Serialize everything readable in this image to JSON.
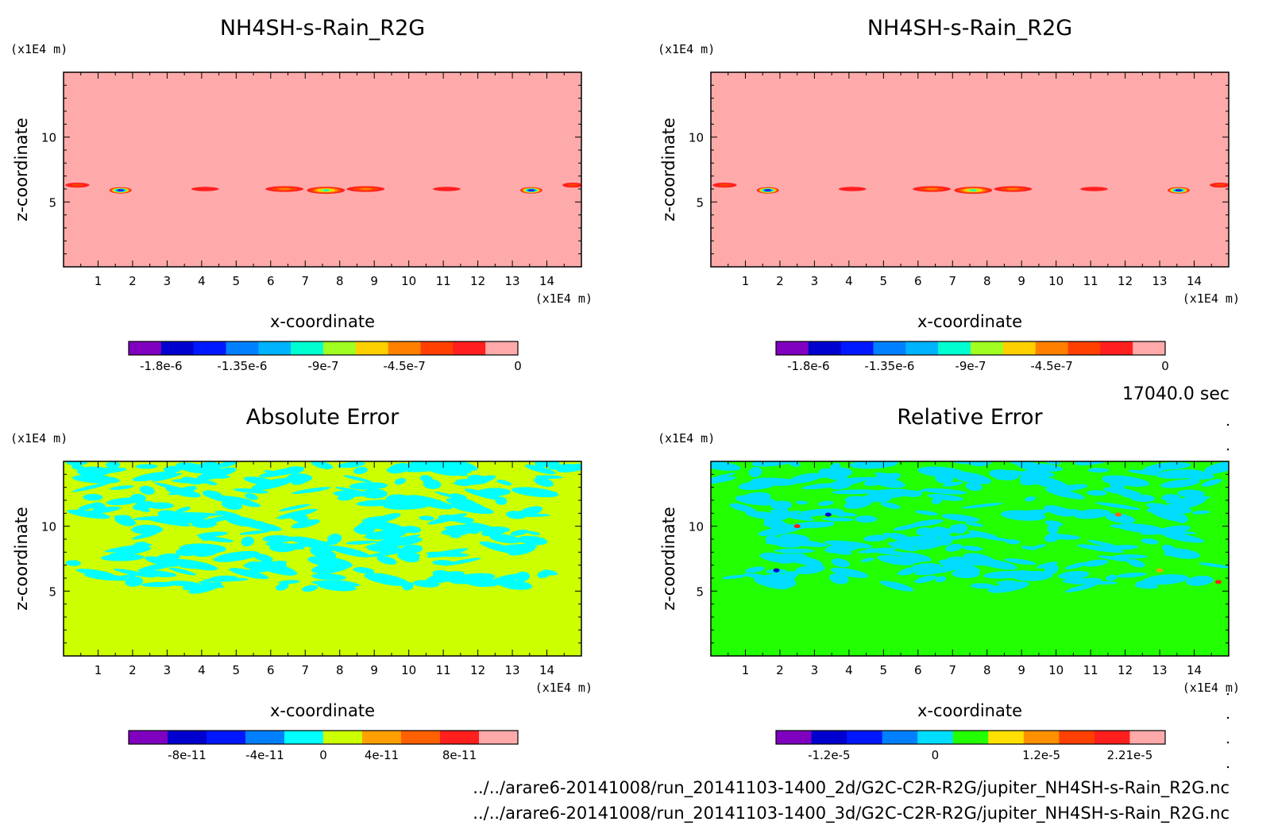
{
  "footer": {
    "time_label": "17040.0 sec",
    "file1": "../../arare6-20141008/run_20141103-1400_2d/G2C-C2R-R2G/jupiter_NH4SH-s-Rain_R2G.nc",
    "file2": "../../arare6-20141008/run_20141103-1400_3d/G2C-C2R-R2G/jupiter_NH4SH-s-Rain_R2G.nc"
  },
  "chart_data": [
    {
      "type": "heatmap",
      "title": "NH4SH-s-Rain_R2G",
      "xlabel": "x-coordinate",
      "ylabel": "z-coordinate",
      "x_unit": "(x1E4 m)",
      "y_unit": "(x1E4 m)",
      "xlim": [
        0,
        15
      ],
      "ylim": [
        0,
        15
      ],
      "x_ticks": [
        "1",
        "2",
        "3",
        "4",
        "5",
        "6",
        "7",
        "8",
        "9",
        "10",
        "11",
        "12",
        "13",
        "14"
      ],
      "y_ticks": [
        "5",
        "10"
      ],
      "background_color": "#ffaaaa",
      "colorbar": {
        "colors": [
          "#7f00bf",
          "#0000cf",
          "#0018ff",
          "#0080ff",
          "#00b3ff",
          "#00ffd0",
          "#a0ff20",
          "#ffd000",
          "#ff8000",
          "#ff4000",
          "#ff1f1f",
          "#ffaaaa"
        ],
        "tick_labels": [
          "-1.8e-6",
          "-1.35e-6",
          "-9e-7",
          "-4.5e-7",
          "0"
        ]
      },
      "features": [
        {
          "x": 0.4,
          "z": 6.3,
          "rx": 0.35,
          "rz": 0.35,
          "min": -3.5e-07
        },
        {
          "x": 1.65,
          "z": 5.9,
          "rx": 0.32,
          "rz": 0.45,
          "min": -1.7e-06
        },
        {
          "x": 4.1,
          "z": 6.0,
          "rx": 0.4,
          "rz": 0.3,
          "min": -2e-07
        },
        {
          "x": 6.4,
          "z": 6.0,
          "rx": 0.55,
          "rz": 0.4,
          "min": -5e-07
        },
        {
          "x": 7.6,
          "z": 5.9,
          "rx": 0.55,
          "rz": 0.5,
          "min": -1e-06
        },
        {
          "x": 8.75,
          "z": 6.0,
          "rx": 0.55,
          "rz": 0.4,
          "min": -5e-07
        },
        {
          "x": 11.1,
          "z": 6.0,
          "rx": 0.4,
          "rz": 0.3,
          "min": -2e-07
        },
        {
          "x": 13.55,
          "z": 5.9,
          "rx": 0.32,
          "rz": 0.45,
          "min": -1.7e-06
        },
        {
          "x": 14.75,
          "z": 6.3,
          "rx": 0.3,
          "rz": 0.35,
          "min": -3.5e-07
        }
      ]
    },
    {
      "type": "heatmap",
      "title": "NH4SH-s-Rain_R2G",
      "xlabel": "x-coordinate",
      "ylabel": "z-coordinate",
      "x_unit": "(x1E4 m)",
      "y_unit": "(x1E4 m)",
      "xlim": [
        0,
        15
      ],
      "ylim": [
        0,
        15
      ],
      "x_ticks": [
        "1",
        "2",
        "3",
        "4",
        "5",
        "6",
        "7",
        "8",
        "9",
        "10",
        "11",
        "12",
        "13",
        "14"
      ],
      "y_ticks": [
        "5",
        "10"
      ],
      "background_color": "#ffaaaa",
      "colorbar": {
        "colors": [
          "#7f00bf",
          "#0000cf",
          "#0018ff",
          "#0080ff",
          "#00b3ff",
          "#00ffd0",
          "#a0ff20",
          "#ffd000",
          "#ff8000",
          "#ff4000",
          "#ff1f1f",
          "#ffaaaa"
        ],
        "tick_labels": [
          "-1.8e-6",
          "-1.35e-6",
          "-9e-7",
          "-4.5e-7",
          "0"
        ]
      },
      "features": [
        {
          "x": 0.4,
          "z": 6.3,
          "rx": 0.35,
          "rz": 0.35,
          "min": -3.5e-07
        },
        {
          "x": 1.65,
          "z": 5.9,
          "rx": 0.32,
          "rz": 0.45,
          "min": -1.7e-06
        },
        {
          "x": 4.1,
          "z": 6.0,
          "rx": 0.4,
          "rz": 0.3,
          "min": -2e-07
        },
        {
          "x": 6.4,
          "z": 6.0,
          "rx": 0.55,
          "rz": 0.4,
          "min": -5e-07
        },
        {
          "x": 7.6,
          "z": 5.9,
          "rx": 0.55,
          "rz": 0.5,
          "min": -1e-06
        },
        {
          "x": 8.75,
          "z": 6.0,
          "rx": 0.55,
          "rz": 0.4,
          "min": -5e-07
        },
        {
          "x": 11.1,
          "z": 6.0,
          "rx": 0.4,
          "rz": 0.3,
          "min": -2e-07
        },
        {
          "x": 13.55,
          "z": 5.9,
          "rx": 0.32,
          "rz": 0.45,
          "min": -1.7e-06
        },
        {
          "x": 14.75,
          "z": 6.3,
          "rx": 0.3,
          "rz": 0.35,
          "min": -3.5e-07
        }
      ]
    },
    {
      "type": "heatmap",
      "title": "Absolute Error",
      "xlabel": "x-coordinate",
      "ylabel": "z-coordinate",
      "x_unit": "(x1E4 m)",
      "y_unit": "(x1E4 m)",
      "xlim": [
        0,
        15
      ],
      "ylim": [
        0,
        15
      ],
      "x_ticks": [
        "1",
        "2",
        "3",
        "4",
        "5",
        "6",
        "7",
        "8",
        "9",
        "10",
        "11",
        "12",
        "13",
        "14"
      ],
      "y_ticks": [
        "5",
        "10"
      ],
      "background_color": "#ccff00",
      "patch_color": "#00ffff",
      "colorbar": {
        "colors": [
          "#7f00bf",
          "#0000cf",
          "#0018ff",
          "#0080ff",
          "#00ffff",
          "#ccff00",
          "#ffa000",
          "#ff6000",
          "#ff1f1f",
          "#ffaaaa"
        ],
        "tick_labels": [
          "-8e-11",
          "-4e-11",
          "0",
          "4e-11",
          "8e-11"
        ]
      }
    },
    {
      "type": "heatmap",
      "title": "Relative Error",
      "xlabel": "x-coordinate",
      "ylabel": "z-coordinate",
      "x_unit": "(x1E4 m)",
      "y_unit": "(x1E4 m)",
      "xlim": [
        0,
        15
      ],
      "ylim": [
        0,
        15
      ],
      "x_ticks": [
        "1",
        "2",
        "3",
        "4",
        "5",
        "6",
        "7",
        "8",
        "9",
        "10",
        "11",
        "12",
        "13",
        "14"
      ],
      "y_ticks": [
        "5",
        "10"
      ],
      "background_color": "#22ff00",
      "patch_color": "#00ddff",
      "colorbar": {
        "colors": [
          "#7f00bf",
          "#0000cf",
          "#0018ff",
          "#0080ff",
          "#00ddff",
          "#22ff00",
          "#ffe000",
          "#ff9000",
          "#ff4000",
          "#ff1f1f",
          "#ffaaaa"
        ],
        "tick_labels": [
          "-1.2e-5",
          "0",
          "1.2e-5",
          "2.21e-5"
        ]
      }
    }
  ]
}
